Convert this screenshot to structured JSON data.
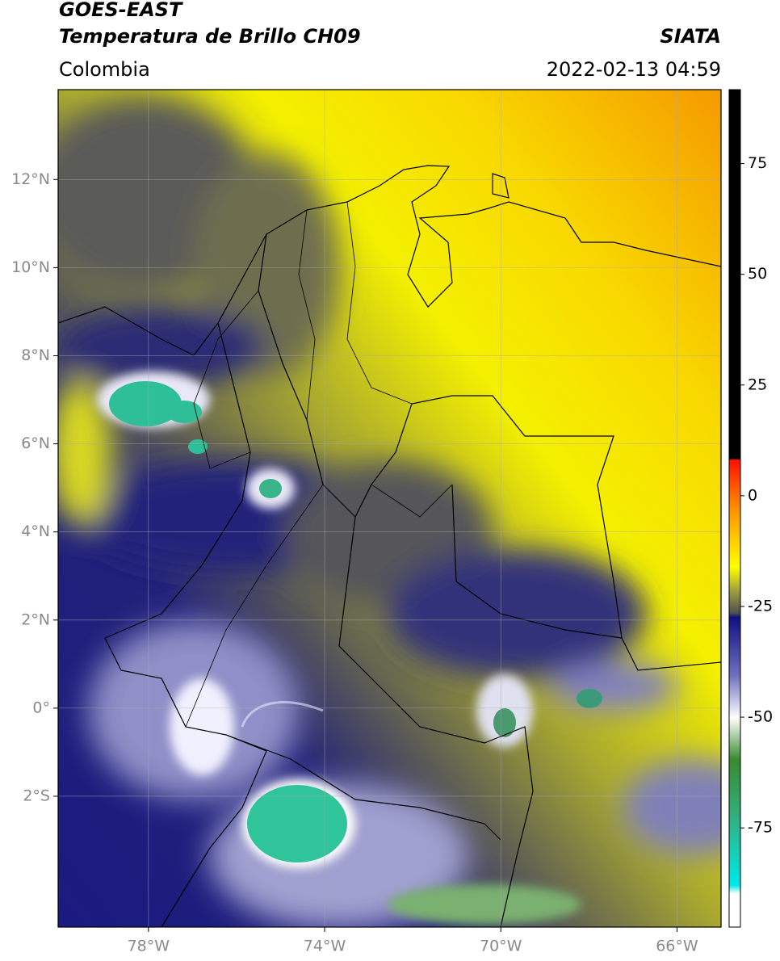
{
  "header": {
    "title": "GOES-EAST",
    "subtitle": "Temperatura de Brillo CH09",
    "source": "SIATA",
    "region": "Colombia",
    "datetime": "2022-02-13 04:59"
  },
  "map": {
    "xlim": [
      -80.05,
      -65
    ],
    "ylim": [
      -4.97,
      14.04
    ],
    "grid": true,
    "xticks": [
      {
        "value": -78,
        "label": "78°W"
      },
      {
        "value": -74,
        "label": "74°W"
      },
      {
        "value": -70,
        "label": "70°W"
      },
      {
        "value": -66,
        "label": "66°W"
      }
    ],
    "yticks": [
      {
        "value": 12,
        "label": "12°N"
      },
      {
        "value": 10,
        "label": "10°N"
      },
      {
        "value": 8,
        "label": "8°N"
      },
      {
        "value": 6,
        "label": "6°N"
      },
      {
        "value": 4,
        "label": "4°N"
      },
      {
        "value": 2,
        "label": "2°N"
      },
      {
        "value": 0,
        "label": "0°"
      },
      {
        "value": -2,
        "label": "2°S"
      }
    ]
  },
  "colorbar": {
    "clim": [
      -97.4,
      91.7
    ],
    "ticks": [
      75,
      50,
      25,
      0,
      -25,
      -50,
      -75
    ]
  }
}
